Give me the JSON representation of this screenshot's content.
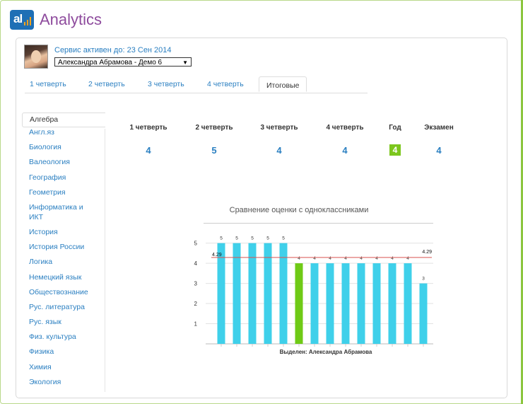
{
  "app": {
    "title": "Analytics",
    "logo_text": "al",
    "logo_bar_color": "#f7a21b",
    "brand_color": "#1e6fb5"
  },
  "service": {
    "active_until": "Сервис активен до: 23 Сен 2014"
  },
  "user_select": {
    "selected": "Александра Абрамова - Демо 6"
  },
  "tabs": [
    {
      "label": "1 четверть",
      "active": false
    },
    {
      "label": "2 четверть",
      "active": false
    },
    {
      "label": "3 четверть",
      "active": false
    },
    {
      "label": "4 четверть",
      "active": false
    },
    {
      "label": "Итоговые",
      "active": true
    }
  ],
  "subjects": [
    "Алгебра",
    "Англ.яз",
    "Биология",
    "Валеология",
    "География",
    "Геометрия",
    "Информатика и ИКТ",
    "История",
    "История России",
    "Логика",
    "Немецкий язык",
    "Обществознание",
    "Рус. литература",
    "Рус. язык",
    "Физ. культура",
    "Физика",
    "Химия",
    "Экология"
  ],
  "active_subject": "Алгебра",
  "grades": {
    "headers": [
      "1 четверть",
      "2 четверть",
      "3 четверть",
      "4 четверть",
      "Год",
      "Экзамен"
    ],
    "values": [
      "4",
      "5",
      "4",
      "4",
      "4",
      "4"
    ],
    "highlight_color": "#7cc61d"
  },
  "chart_data": {
    "type": "bar",
    "title": "Сравнение оценки с одноклассниками",
    "xlabel": "Выделен: Александра Абрамова",
    "ylabel": "",
    "ylim": [
      0,
      5
    ],
    "yticks": [
      "1",
      "2",
      "3",
      "4",
      "5"
    ],
    "values": [
      5,
      5,
      5,
      5,
      5,
      4,
      4,
      4,
      4,
      4,
      4,
      4,
      4,
      3
    ],
    "highlight_index": 5,
    "average": 4.29,
    "average_labels": [
      "4.29",
      "4.29"
    ],
    "bar_color": "#3fd0ea",
    "highlight_color": "#6fca16",
    "average_line_color": "#d9534f",
    "grid": true
  }
}
